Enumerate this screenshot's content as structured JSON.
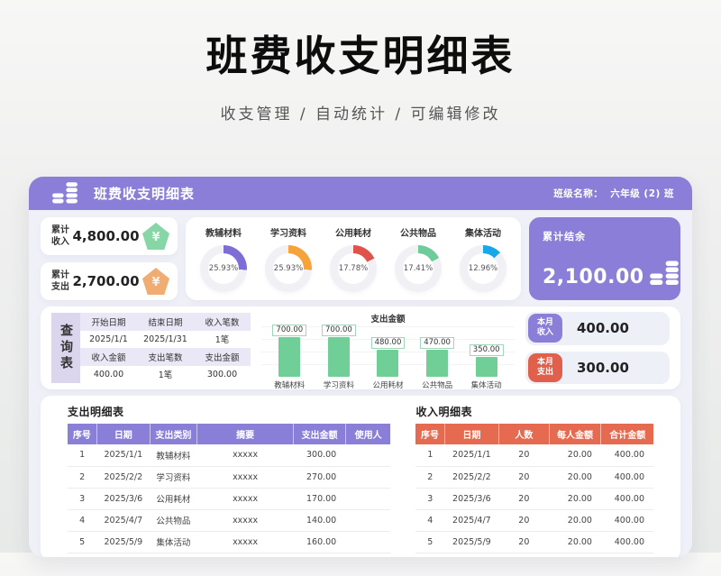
{
  "page": {
    "title": "班费收支明细表",
    "subtitle": "收支管理 / 自动统计 / 可编辑修改"
  },
  "header": {
    "title": "班费收支明细表",
    "class_label": "班级名称：",
    "class_value": "六年级 (2) 班"
  },
  "summary": {
    "income_label_line1": "累计",
    "income_label_line2": "收入",
    "income_value": "4,800.00",
    "expense_label_line1": "累计",
    "expense_label_line2": "支出",
    "expense_value": "2,700.00",
    "balance_label": "累计结余",
    "balance_value": "2,100.00",
    "currency_symbol": "¥"
  },
  "donuts": {
    "items": [
      {
        "label": "教辅材料",
        "percent": 25.93,
        "percent_label": "25.93%",
        "color": "#7f6dd6"
      },
      {
        "label": "学习资料",
        "percent": 25.93,
        "percent_label": "25.93%",
        "color": "#f6a33c"
      },
      {
        "label": "公用耗材",
        "percent": 17.78,
        "percent_label": "17.78%",
        "color": "#e0534a"
      },
      {
        "label": "公共物品",
        "percent": 17.41,
        "percent_label": "17.41%",
        "color": "#6ecb9a"
      },
      {
        "label": "集体活动",
        "percent": 12.96,
        "percent_label": "12.96%",
        "color": "#18a8e8"
      }
    ]
  },
  "query": {
    "title": "查询表",
    "rows": [
      [
        "开始日期",
        "结束日期",
        "收入笔数"
      ],
      [
        "2025/1/1",
        "2025/1/31",
        "1笔"
      ],
      [
        "收入金额",
        "支出笔数",
        "支出金额"
      ],
      [
        "400.00",
        "1笔",
        "300.00"
      ]
    ]
  },
  "bar_chart": {
    "title": "支出金额",
    "max": 700,
    "items": [
      {
        "label": "教辅材料",
        "value": 700,
        "value_label": "700.00"
      },
      {
        "label": "学习资料",
        "value": 700,
        "value_label": "700.00"
      },
      {
        "label": "公用耗材",
        "value": 480,
        "value_label": "480.00"
      },
      {
        "label": "公共物品",
        "value": 470,
        "value_label": "470.00"
      },
      {
        "label": "集体活动",
        "value": 350,
        "value_label": "350.00"
      }
    ]
  },
  "monthly": {
    "income_badge_line1": "本月",
    "income_badge_line2": "收入",
    "income_value": "400.00",
    "expense_badge_line1": "本月",
    "expense_badge_line2": "支出",
    "expense_value": "300.00"
  },
  "expense_table": {
    "title": "支出明细表",
    "headers": [
      "序号",
      "日期",
      "支出类别",
      "摘要",
      "支出金额",
      "使用人"
    ],
    "rows": [
      [
        "1",
        "2025/1/1",
        "教辅材料",
        "xxxxx",
        "300.00",
        ""
      ],
      [
        "2",
        "2025/2/2",
        "学习资料",
        "xxxxx",
        "270.00",
        ""
      ],
      [
        "3",
        "2025/3/6",
        "公用耗材",
        "xxxxx",
        "170.00",
        ""
      ],
      [
        "4",
        "2025/4/7",
        "公共物品",
        "xxxxx",
        "140.00",
        ""
      ],
      [
        "5",
        "2025/5/9",
        "集体活动",
        "xxxxx",
        "160.00",
        ""
      ]
    ]
  },
  "income_table": {
    "title": "收入明细表",
    "headers": [
      "序号",
      "日期",
      "人数",
      "每人金额",
      "合计金额"
    ],
    "rows": [
      [
        "1",
        "2025/1/1",
        "20",
        "20.00",
        "400.00"
      ],
      [
        "2",
        "2025/2/2",
        "20",
        "20.00",
        "400.00"
      ],
      [
        "3",
        "2025/3/6",
        "20",
        "20.00",
        "400.00"
      ],
      [
        "4",
        "2025/4/7",
        "20",
        "20.00",
        "400.00"
      ],
      [
        "5",
        "2025/5/9",
        "20",
        "20.00",
        "400.00"
      ]
    ]
  },
  "colors": {
    "primary_purple": "#8a7ed8",
    "accent_red": "#e66a50",
    "bar_green": "#6fcf97",
    "income_icon_green": "#86d6a6",
    "expense_icon_orange": "#f0ac72"
  },
  "chart_data": [
    {
      "type": "pie",
      "title": "",
      "subtype": "donut-set",
      "categories": [
        "教辅材料",
        "学习资料",
        "公用耗材",
        "公共物品",
        "集体活动"
      ],
      "values": [
        25.93,
        25.93,
        17.78,
        17.41,
        12.96
      ],
      "unit": "%",
      "colors": [
        "#7f6dd6",
        "#f6a33c",
        "#e0534a",
        "#6ecb9a",
        "#18a8e8"
      ],
      "legend_position": "above-each"
    },
    {
      "type": "bar",
      "title": "支出金额",
      "categories": [
        "教辅材料",
        "学习资料",
        "公用耗材",
        "公共物品",
        "集体活动"
      ],
      "values": [
        700,
        700,
        480,
        470,
        350
      ],
      "xlabel": "",
      "ylabel": "",
      "ylim": [
        0,
        750
      ],
      "grid": true,
      "bar_color": "#6fcf97",
      "data_labels": [
        "700.00",
        "700.00",
        "480.00",
        "470.00",
        "350.00"
      ]
    }
  ]
}
